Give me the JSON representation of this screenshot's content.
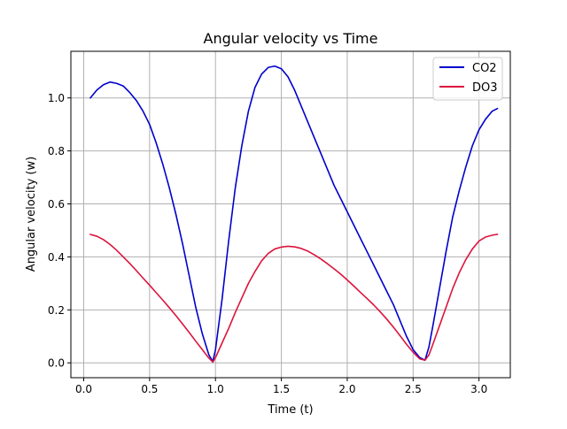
{
  "chart_data": {
    "type": "line",
    "title": "Angular velocity vs Time",
    "xlabel": "Time (t)",
    "ylabel": "Angular velocity (w)",
    "xlim": [
      -0.0975,
      3.2375
    ],
    "ylim": [
      -0.056,
      1.176
    ],
    "xticks": [
      0.0,
      0.5,
      1.0,
      1.5,
      2.0,
      2.5,
      3.0
    ],
    "yticks": [
      0.0,
      0.2,
      0.4,
      0.6,
      0.8,
      1.0
    ],
    "xtick_labels": [
      "0.0",
      "0.5",
      "1.0",
      "1.5",
      "2.0",
      "2.5",
      "3.0"
    ],
    "ytick_labels": [
      "0.0",
      "0.2",
      "0.4",
      "0.6",
      "0.8",
      "1.0"
    ],
    "grid": true,
    "legend_position": "top-right",
    "series": [
      {
        "name": "CO2",
        "color": "#0000cc",
        "x": [
          0.05,
          0.1,
          0.15,
          0.2,
          0.25,
          0.3,
          0.35,
          0.4,
          0.45,
          0.5,
          0.55,
          0.6,
          0.65,
          0.7,
          0.75,
          0.8,
          0.85,
          0.9,
          0.95,
          0.98,
          1.0,
          1.05,
          1.1,
          1.15,
          1.2,
          1.25,
          1.3,
          1.35,
          1.4,
          1.45,
          1.5,
          1.55,
          1.6,
          1.65,
          1.7,
          1.75,
          1.8,
          1.85,
          1.9,
          1.95,
          2.0,
          2.05,
          2.1,
          2.15,
          2.2,
          2.25,
          2.3,
          2.35,
          2.4,
          2.45,
          2.5,
          2.55,
          2.59,
          2.62,
          2.65,
          2.7,
          2.75,
          2.8,
          2.85,
          2.9,
          2.95,
          3.0,
          3.05,
          3.1,
          3.14
        ],
        "y": [
          1.0,
          1.03,
          1.05,
          1.06,
          1.055,
          1.045,
          1.02,
          0.99,
          0.95,
          0.9,
          0.83,
          0.75,
          0.66,
          0.56,
          0.45,
          0.33,
          0.21,
          0.11,
          0.03,
          0.005,
          0.05,
          0.24,
          0.46,
          0.66,
          0.82,
          0.95,
          1.04,
          1.09,
          1.115,
          1.12,
          1.11,
          1.08,
          1.03,
          0.97,
          0.91,
          0.85,
          0.79,
          0.73,
          0.67,
          0.62,
          0.57,
          0.52,
          0.47,
          0.42,
          0.37,
          0.32,
          0.27,
          0.22,
          0.16,
          0.1,
          0.05,
          0.02,
          0.01,
          0.06,
          0.14,
          0.28,
          0.42,
          0.55,
          0.65,
          0.74,
          0.82,
          0.88,
          0.92,
          0.95,
          0.96
        ]
      },
      {
        "name": "DO3",
        "color": "#dc143c",
        "x": [
          0.05,
          0.1,
          0.15,
          0.2,
          0.25,
          0.3,
          0.35,
          0.4,
          0.45,
          0.5,
          0.55,
          0.6,
          0.65,
          0.7,
          0.75,
          0.8,
          0.85,
          0.9,
          0.95,
          0.98,
          1.0,
          1.05,
          1.1,
          1.15,
          1.2,
          1.25,
          1.3,
          1.35,
          1.4,
          1.45,
          1.5,
          1.55,
          1.6,
          1.65,
          1.7,
          1.75,
          1.8,
          1.85,
          1.9,
          1.95,
          2.0,
          2.05,
          2.1,
          2.15,
          2.2,
          2.25,
          2.3,
          2.35,
          2.4,
          2.45,
          2.5,
          2.55,
          2.59,
          2.62,
          2.65,
          2.7,
          2.75,
          2.8,
          2.85,
          2.9,
          2.95,
          3.0,
          3.05,
          3.1,
          3.14
        ],
        "y": [
          0.485,
          0.478,
          0.465,
          0.447,
          0.425,
          0.4,
          0.375,
          0.348,
          0.32,
          0.293,
          0.265,
          0.237,
          0.208,
          0.178,
          0.147,
          0.115,
          0.082,
          0.05,
          0.018,
          0.003,
          0.02,
          0.075,
          0.13,
          0.19,
          0.245,
          0.3,
          0.345,
          0.385,
          0.413,
          0.43,
          0.437,
          0.44,
          0.438,
          0.432,
          0.422,
          0.408,
          0.392,
          0.374,
          0.355,
          0.335,
          0.313,
          0.29,
          0.266,
          0.243,
          0.219,
          0.193,
          0.165,
          0.135,
          0.103,
          0.07,
          0.04,
          0.015,
          0.01,
          0.03,
          0.07,
          0.14,
          0.21,
          0.28,
          0.34,
          0.39,
          0.43,
          0.46,
          0.475,
          0.482,
          0.485
        ]
      }
    ]
  }
}
